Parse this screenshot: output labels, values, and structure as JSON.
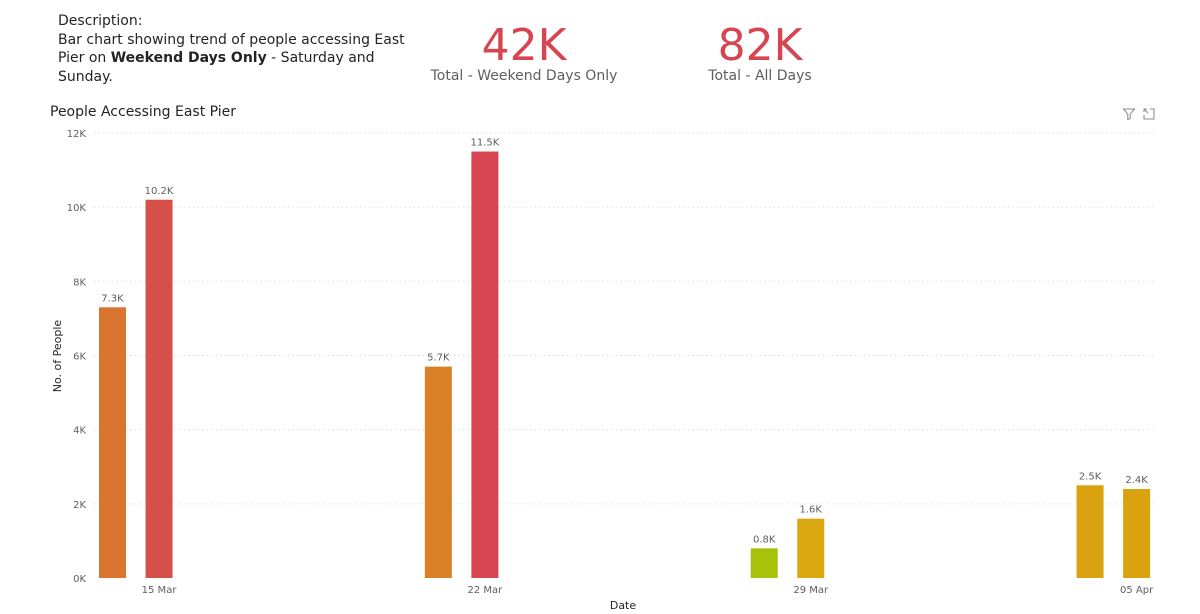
{
  "description": {
    "line1": "Description:",
    "line2": "Bar chart showing trend of people accessing East",
    "line3_pre": "Pier on ",
    "line3_bold": "Weekend Days Only",
    "line3_post": " - Saturday and Sunday."
  },
  "kpis": {
    "weekend": {
      "value": "42K",
      "label": "Total - Weekend Days Only"
    },
    "all": {
      "value": "82K",
      "label": "Total - All Days"
    }
  },
  "colors": {
    "kpi_value": "#d64550",
    "grid": "#dcdcdc",
    "axis_text": "#605e5c"
  },
  "icons": {
    "filter": "filter-icon",
    "focus": "focus-mode-icon"
  },
  "chart_data": {
    "type": "bar",
    "title": "People Accessing East Pier",
    "xlabel": "Date",
    "ylabel": "No. of People",
    "ylim": [
      0,
      12000
    ],
    "y_ticks": [
      0,
      2000,
      4000,
      6000,
      8000,
      10000,
      12000
    ],
    "y_tick_labels": [
      "0K",
      "2K",
      "4K",
      "6K",
      "8K",
      "10K",
      "12K"
    ],
    "x_tick_labels": [
      "15 Mar",
      "22 Mar",
      "29 Mar",
      "05 Apr"
    ],
    "grid": true,
    "bars": [
      {
        "date": "2020-03-14",
        "value": 7300,
        "label": "7.3K",
        "color": "#d9752f"
      },
      {
        "date": "2020-03-15",
        "value": 10200,
        "label": "10.2K",
        "color": "#d6504a"
      },
      {
        "date": "2020-03-21",
        "value": 5700,
        "label": "5.7K",
        "color": "#d97f26"
      },
      {
        "date": "2020-03-22",
        "value": 11500,
        "label": "11.5K",
        "color": "#d64550"
      },
      {
        "date": "2020-03-28",
        "value": 800,
        "label": "0.8K",
        "color": "#a6c30a"
      },
      {
        "date": "2020-03-29",
        "value": 1600,
        "label": "1.6K",
        "color": "#dba812"
      },
      {
        "date": "2020-04-04",
        "value": 2500,
        "label": "2.5K",
        "color": "#daa20f"
      },
      {
        "date": "2020-04-05",
        "value": 2400,
        "label": "2.4K",
        "color": "#daa20f"
      }
    ]
  }
}
